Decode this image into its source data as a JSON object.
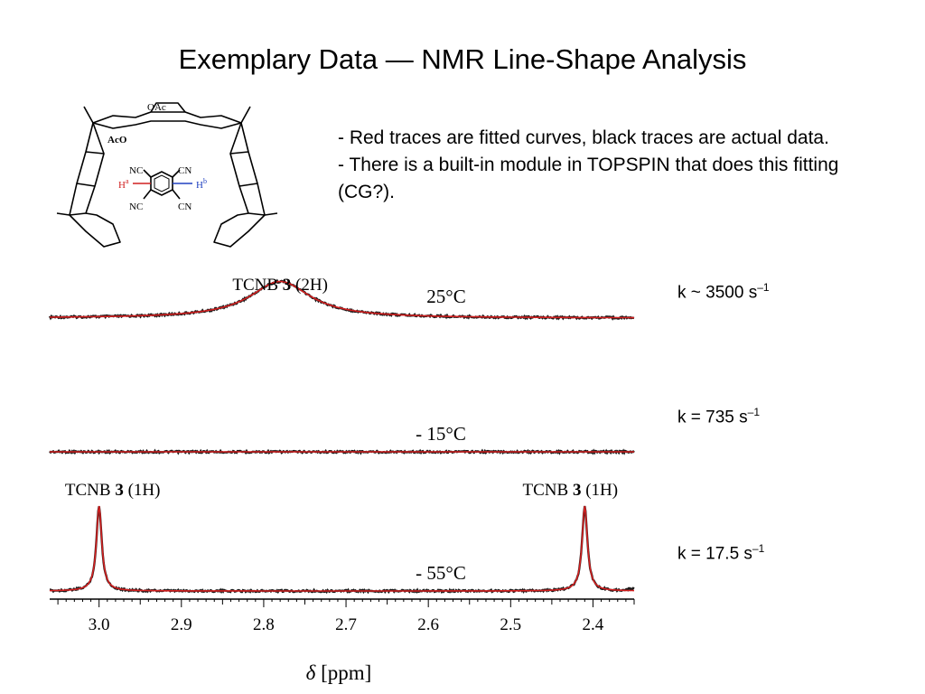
{
  "slide": {
    "title": "Exemplary Data — NMR Line-Shape Analysis",
    "bullets": [
      "- Red traces are fitted curves, black traces are actual data.",
      "- There is a built-in module in TOPSPIN that does this fitting (CG?)."
    ]
  },
  "structure": {
    "labels": {
      "oac": "OAc",
      "aco": "AcO",
      "nc": "NC",
      "cn": "CN",
      "ha": "H",
      "ha_sup": "a",
      "hb": "H",
      "hb_sup": "b"
    },
    "colors": {
      "ha": "#d02020",
      "hb": "#2040c0",
      "bonds": "#000000"
    }
  },
  "chart_data": {
    "type": "line",
    "xlabel_symbol": "δ",
    "xlabel_unit": "[ppm]",
    "xticks": [
      3.0,
      2.9,
      2.8,
      2.7,
      2.6,
      2.5,
      2.4
    ],
    "xlim": [
      3.06,
      2.35
    ],
    "x_reversed": true,
    "legend": "none",
    "colors": {
      "data": "#1a1a1a",
      "fit": "#d42020"
    },
    "spectra": [
      {
        "temperature": "25°C",
        "rate_prefix": "k ~ 3500 s",
        "rate_exp": "–1",
        "peak_label": {
          "pre": "TCNB ",
          "bold": "3",
          "post": " (2H)"
        },
        "peaks": [
          {
            "center": 2.78,
            "height": 0.9,
            "width": 0.045
          }
        ]
      },
      {
        "temperature": "- 15°C",
        "rate_prefix": "k = 735 s",
        "rate_exp": "–1",
        "peak_label": null,
        "peaks": []
      },
      {
        "temperature": "- 55°C",
        "rate_prefix": "k = 17.5 s",
        "rate_exp": "–1",
        "peak_labels": [
          {
            "pre": "TCNB ",
            "bold": "3",
            "post": " (1H)"
          },
          {
            "pre": "TCNB ",
            "bold": "3",
            "post": " (1H)"
          }
        ],
        "peaks": [
          {
            "center": 3.0,
            "height": 1.0,
            "width": 0.004
          },
          {
            "center": 2.41,
            "height": 1.0,
            "width": 0.004
          }
        ]
      }
    ]
  }
}
